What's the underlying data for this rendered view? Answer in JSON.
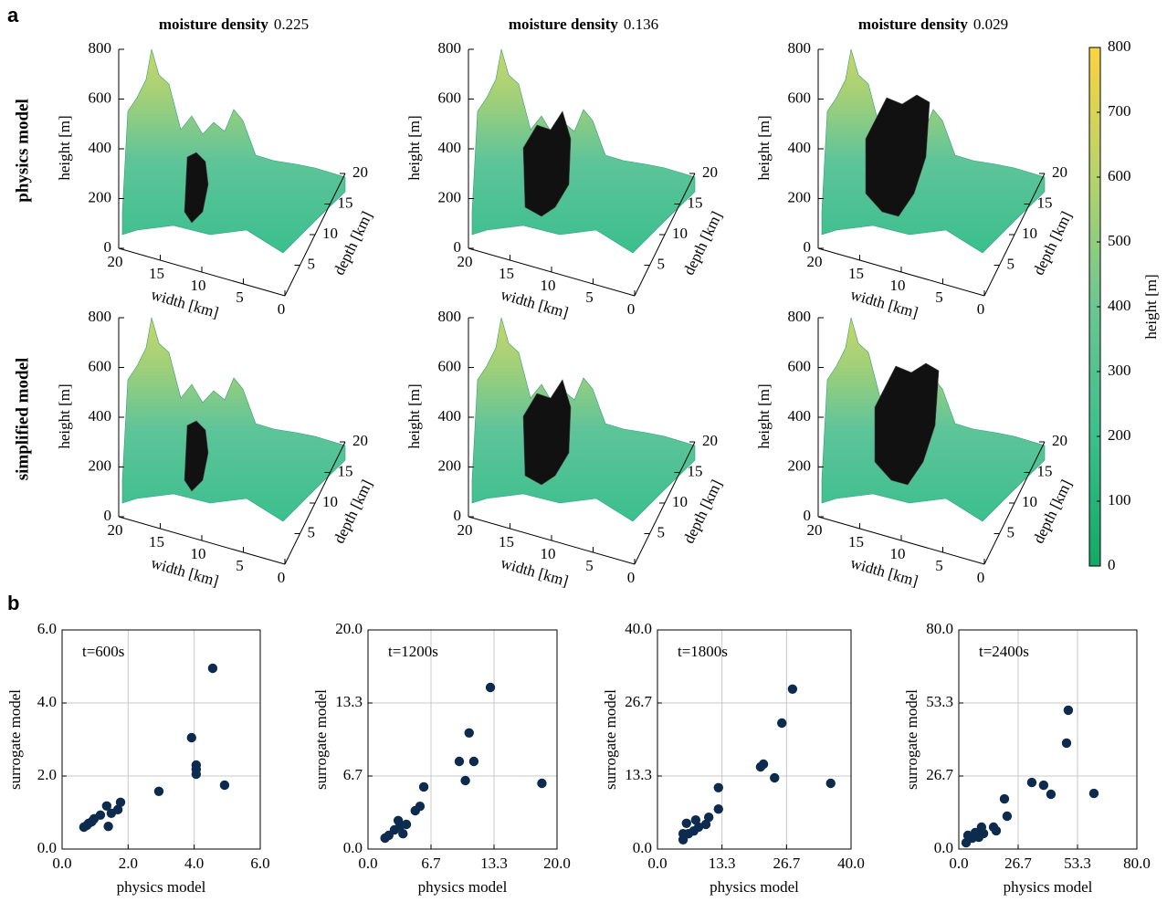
{
  "panel_labels": [
    "a",
    "b"
  ],
  "surface_panel": {
    "columns": [
      {
        "title": "moisture density",
        "value": "0.225"
      },
      {
        "title": "moisture density",
        "value": "0.136"
      },
      {
        "title": "moisture density",
        "value": "0.029"
      }
    ],
    "rows": [
      "physics model",
      "simplified model"
    ],
    "zlabel": "height [m]",
    "xlabel": "width [km]",
    "ylabel": "depth [km]",
    "zticks": [
      0,
      200,
      400,
      600,
      800
    ],
    "xticks": [
      20,
      15,
      10,
      5,
      0
    ],
    "yticks": [
      5,
      10,
      15,
      20
    ],
    "colorbar": {
      "label": "height [m]",
      "lim": [
        0,
        800
      ],
      "ticks": [
        0,
        100,
        200,
        300,
        400,
        500,
        600,
        700,
        800
      ]
    }
  },
  "chart_data": [
    {
      "type": "scatter",
      "annotation": "t=600s",
      "xlabel": "physics model",
      "ylabel": "surrogate model",
      "xlim": [
        0,
        6
      ],
      "ylim": [
        0,
        6
      ],
      "xticks": [
        {
          "value": 0,
          "label": "0.0"
        },
        {
          "value": 2,
          "label": "2.0"
        },
        {
          "value": 4,
          "label": "4.0"
        },
        {
          "value": 6,
          "label": "6.0"
        }
      ],
      "yticks": [
        {
          "value": 0,
          "label": "0.0"
        },
        {
          "value": 2,
          "label": "2.0"
        },
        {
          "value": 4,
          "label": "4.0"
        },
        {
          "value": 6,
          "label": "6.0"
        }
      ],
      "grid": true,
      "color": "#0d2b4e",
      "x": [
        4.56,
        3.92,
        4.06,
        4.06,
        4.06,
        4.92,
        2.93,
        1.77,
        1.35,
        1.69,
        1.49,
        1.16,
        0.97,
        0.8,
        0.66,
        1.4,
        0.9,
        0.75
      ],
      "y": [
        4.95,
        3.05,
        2.3,
        2.18,
        2.05,
        1.75,
        1.58,
        1.28,
        1.18,
        1.08,
        0.98,
        0.93,
        0.83,
        0.7,
        0.6,
        0.62,
        0.75,
        0.65
      ]
    },
    {
      "type": "scatter",
      "annotation": "t=1200s",
      "xlabel": "physics model",
      "ylabel": "surrogate model",
      "xlim": [
        0,
        20
      ],
      "ylim": [
        0,
        20
      ],
      "xticks": [
        {
          "value": 0,
          "label": "0.0"
        },
        {
          "value": 6.667,
          "label": "6.7"
        },
        {
          "value": 13.333,
          "label": "13.3"
        },
        {
          "value": 20,
          "label": "20.0"
        }
      ],
      "yticks": [
        {
          "value": 0,
          "label": "0.0"
        },
        {
          "value": 6.667,
          "label": "6.7"
        },
        {
          "value": 13.333,
          "label": "13.3"
        },
        {
          "value": 20,
          "label": "20.0"
        }
      ],
      "grid": true,
      "color": "#0d2b4e",
      "x": [
        12.95,
        10.7,
        9.66,
        11.2,
        10.3,
        18.4,
        5.9,
        5.5,
        5.0,
        4.06,
        3.4,
        3.7,
        2.8,
        2.2,
        1.8,
        3.2
      ],
      "y": [
        14.75,
        10.6,
        8.0,
        8.0,
        6.25,
        6.0,
        5.67,
        3.9,
        3.5,
        2.25,
        2.1,
        1.4,
        1.75,
        1.25,
        1.0,
        2.6
      ]
    },
    {
      "type": "scatter",
      "annotation": "t=1800s",
      "xlabel": "physics model",
      "ylabel": "surrogate model",
      "xlim": [
        0,
        40
      ],
      "ylim": [
        0,
        40
      ],
      "xticks": [
        {
          "value": 0,
          "label": "0.0"
        },
        {
          "value": 13.333,
          "label": "13.3"
        },
        {
          "value": 26.667,
          "label": "26.7"
        },
        {
          "value": 40,
          "label": "40.0"
        }
      ],
      "yticks": [
        {
          "value": 0,
          "label": "0.0"
        },
        {
          "value": 13.333,
          "label": "13.3"
        },
        {
          "value": 26.667,
          "label": "26.7"
        },
        {
          "value": 40,
          "label": "40.0"
        }
      ],
      "grid": true,
      "color": "#0d2b4e",
      "x": [
        27.9,
        25.7,
        21.9,
        21.3,
        24.2,
        35.8,
        12.6,
        12.6,
        10.6,
        10.0,
        7.9,
        7.5,
        6.0,
        6.4,
        5.3,
        5.3,
        8.5
      ],
      "y": [
        29.2,
        23.0,
        15.5,
        15.0,
        13.0,
        12.0,
        11.2,
        7.3,
        5.8,
        4.5,
        5.3,
        3.3,
        4.7,
        2.8,
        2.8,
        1.7,
        4.0
      ]
    },
    {
      "type": "scatter",
      "annotation": "t=2400s",
      "xlabel": "physics model",
      "ylabel": "surrogate model",
      "xlim": [
        0,
        80
      ],
      "ylim": [
        0,
        80
      ],
      "xticks": [
        {
          "value": 0,
          "label": "0.0"
        },
        {
          "value": 26.667,
          "label": "26.7"
        },
        {
          "value": 53.333,
          "label": "53.3"
        },
        {
          "value": 80,
          "label": "80.0"
        }
      ],
      "yticks": [
        {
          "value": 0,
          "label": "0.0"
        },
        {
          "value": 26.667,
          "label": "26.7"
        },
        {
          "value": 53.333,
          "label": "53.3"
        },
        {
          "value": 80,
          "label": "80.0"
        }
      ],
      "grid": true,
      "color": "#0d2b4e",
      "x": [
        49.2,
        48.4,
        32.8,
        38.1,
        41.4,
        60.7,
        20.5,
        21.7,
        15.6,
        16.8,
        10.2,
        11.1,
        7.4,
        6.1,
        4.1,
        3.3,
        9.0
      ],
      "y": [
        50.7,
        38.7,
        24.3,
        23.3,
        20.0,
        20.3,
        18.3,
        12.0,
        8.0,
        6.7,
        8.0,
        5.7,
        6.0,
        4.0,
        5.0,
        2.3,
        4.3
      ]
    }
  ]
}
